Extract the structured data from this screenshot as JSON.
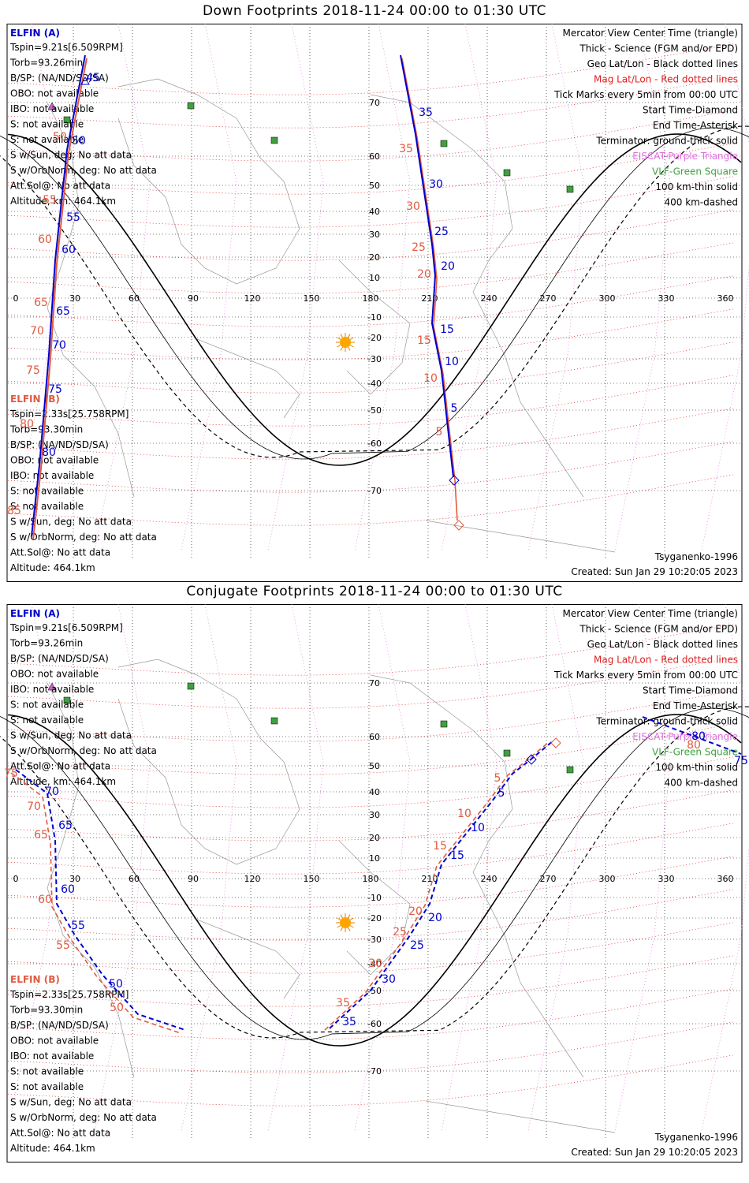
{
  "panels": [
    {
      "title": "Down Footprints 2018-11-24 00:00 to 01:30 UTC",
      "type": "down",
      "created": "Created: Sun Jan 29 10:20:05 2023",
      "model": "Tsyganenko-1996"
    },
    {
      "title": "Conjugate Footprints 2018-11-24 00:00 to 01:30 UTC",
      "type": "conj",
      "created": "Created: Sun Jan 29 10:20:05 2023",
      "model": "Tsyganenko-1996"
    }
  ],
  "legend_right": [
    {
      "text": "Mercator View Center Time (triangle)",
      "color": "#000000"
    },
    {
      "text": "Thick - Science (FGM and/or EPD)",
      "color": "#000000"
    },
    {
      "text": "Geo Lat/Lon - Black dotted lines",
      "color": "#000000"
    },
    {
      "text": "Mag Lat/Lon - Red dotted lines",
      "color": "#e02020"
    },
    {
      "text": "Tick Marks every 5min from 00:00 UTC",
      "color": "#000000"
    },
    {
      "text": "Start Time-Diamond",
      "color": "#000000"
    },
    {
      "text": "End Time-Asterisk",
      "color": "#000000"
    },
    {
      "text": "Terminator: ground-thick solid",
      "color": "#000000"
    },
    {
      "text": "EISCAT-Purple Triangle",
      "color": "#e070e0"
    },
    {
      "text": "VLF-Green Square",
      "color": "#40a040"
    },
    {
      "text": "100 km-thin solid",
      "color": "#000000"
    },
    {
      "text": "400 km-dashed",
      "color": "#000000"
    }
  ],
  "sc_a": {
    "title": "ELFIN (A)",
    "color": "#0000cc",
    "lines": [
      "Tspin=9.21s[6.509RPM]",
      "Torb=93.26min",
      "B/SP: (NA/ND/SD/SA)",
      "OBO: not available",
      "IBO: not available",
      "S: not available",
      "S: not available",
      "S w/Sun, deg: No att data",
      "S w/OrbNorm, deg: No att data",
      "Att.Sol@: No att data",
      "Altitude, km: 464.1km"
    ]
  },
  "sc_b": {
    "title": "ELFIN (B)",
    "color": "#e05a40",
    "lines": [
      "Tspin=2.33s[25.758RPM]",
      "Torb=93.30min",
      "B/SP: (NA/ND/SD/SA)",
      "OBO: not available",
      "IBO: not available",
      "S: not available",
      "S: not available",
      "S w/Sun, deg: No att data",
      "S w/OrbNorm, deg: No att data",
      "Att.Sol@: No att data",
      "Altitude: 464.1km"
    ]
  },
  "axes": {
    "lon_ticks": [
      0,
      30,
      60,
      90,
      120,
      150,
      180,
      210,
      240,
      270,
      300,
      330,
      360
    ],
    "lat_ticks": [
      70,
      60,
      50,
      40,
      30,
      20,
      10,
      -10,
      -20,
      -30,
      -40,
      -50,
      -60,
      -70
    ],
    "colors": {
      "sc_a": "#0000cc",
      "sc_b": "#e05a40",
      "vlf": "#40a040",
      "eiscat": "#d060d0",
      "mag_grid": "#e02020",
      "sun": "#ffa500"
    }
  },
  "down_tracks": {
    "left_blue_labels": [
      "50",
      "55",
      "60",
      "65",
      "70",
      "75",
      "80"
    ],
    "left_red_labels": [
      "50",
      "55",
      "60",
      "65",
      "70",
      "75",
      "80",
      "85"
    ],
    "right_blue_labels": [
      "35",
      "30",
      "25",
      "20",
      "15",
      "10",
      "5"
    ],
    "right_red_labels": [
      "35",
      "30",
      "25",
      "20",
      "15",
      "10",
      "5"
    ],
    "left_top_blue_label": "45"
  },
  "conj_tracks": {
    "left_blue_labels": [
      "70",
      "65",
      "60",
      "55",
      "50"
    ],
    "left_red_labels": [
      "75",
      "70",
      "65",
      "60",
      "55",
      "50"
    ],
    "right_blue_labels": [
      "5",
      "10",
      "15",
      "20",
      "25",
      "30",
      "35",
      "75",
      "80"
    ],
    "right_red_labels": [
      "5",
      "10",
      "15",
      "20",
      "25",
      "30",
      "35",
      "80"
    ]
  }
}
